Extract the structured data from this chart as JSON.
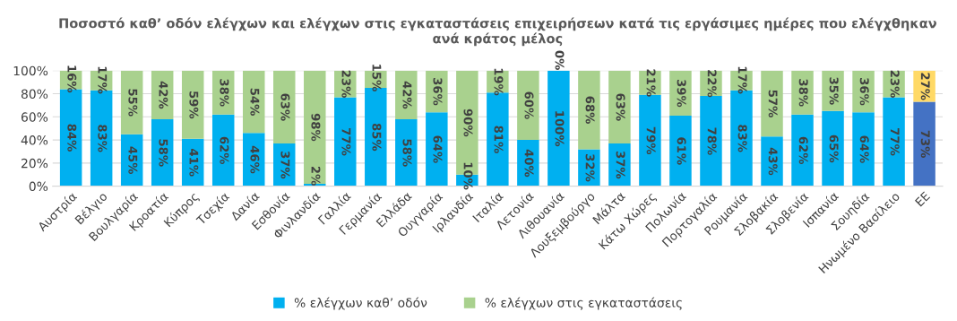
{
  "chart_data": {
    "type": "bar",
    "title": "Ποσοστό καθ’ οδόν ελέγχων και ελέγχων στις εγκαταστάσεις επιχειρήσεων κατά τις εργάσιμες ημέρες που ελέγχθηκαν\nανά κράτος μέλος",
    "categories": [
      "Αυστρία",
      "Βέλγιο",
      "Βουλγαρία",
      "Κροατία",
      "Κύπρος",
      "Τσεχία",
      "Δανία",
      "Εσθονία",
      "Φινλανδία",
      "Γαλλία",
      "Γερμανία",
      "Ελλάδα",
      "Ουγγαρία",
      "Ιρλανδία",
      "Ιταλία",
      "Λετονία",
      "Λιθουανία",
      "Λουξεμβούργο",
      "Μάλτα",
      "Κάτω Χώρες",
      "Πολωνία",
      "Πορτογαλία",
      "Ρουμανία",
      "Σλοβακία",
      "Σλοβενία",
      "Ισπανία",
      "Σουηδία",
      "Ηνωμένο Βασίλειο",
      "ΕΕ"
    ],
    "stacked": true,
    "series": [
      {
        "name": "% ελέγχων καθ’ οδόν",
        "color": "#00b0f0",
        "colors": [
          "#00b0f0",
          "#00b0f0",
          "#00b0f0",
          "#00b0f0",
          "#00b0f0",
          "#00b0f0",
          "#00b0f0",
          "#00b0f0",
          "#00b0f0",
          "#00b0f0",
          "#00b0f0",
          "#00b0f0",
          "#00b0f0",
          "#00b0f0",
          "#00b0f0",
          "#00b0f0",
          "#00b0f0",
          "#00b0f0",
          "#00b0f0",
          "#00b0f0",
          "#00b0f0",
          "#00b0f0",
          "#00b0f0",
          "#00b0f0",
          "#00b0f0",
          "#00b0f0",
          "#00b0f0",
          "#00b0f0",
          "#4472c4"
        ],
        "values": [
          84,
          83,
          45,
          58,
          41,
          62,
          46,
          37,
          2,
          77,
          85,
          58,
          64,
          10,
          81,
          40,
          100,
          32,
          37,
          79,
          61,
          78,
          83,
          43,
          62,
          65,
          64,
          77,
          73
        ],
        "value_labels": [
          "84%",
          "83%",
          "45%",
          "58%",
          "41%",
          "62%",
          "46%",
          "37%",
          "2%",
          "77%",
          "85%",
          "58%",
          "64%",
          "10%",
          "81%",
          "40%",
          "100%",
          "32%",
          "37%",
          "79%",
          "61%",
          "78%",
          "83%",
          "43%",
          "62%",
          "65%",
          "64%",
          "77%",
          "73%"
        ]
      },
      {
        "name": "% ελέγχων στις εγκαταστάσεις",
        "color": "#a9d18e",
        "colors": [
          "#a9d18e",
          "#a9d18e",
          "#a9d18e",
          "#a9d18e",
          "#a9d18e",
          "#a9d18e",
          "#a9d18e",
          "#a9d18e",
          "#a9d18e",
          "#a9d18e",
          "#a9d18e",
          "#a9d18e",
          "#a9d18e",
          "#a9d18e",
          "#a9d18e",
          "#a9d18e",
          "#a9d18e",
          "#a9d18e",
          "#a9d18e",
          "#a9d18e",
          "#a9d18e",
          "#a9d18e",
          "#a9d18e",
          "#a9d18e",
          "#a9d18e",
          "#a9d18e",
          "#a9d18e",
          "#a9d18e",
          "#ffd966"
        ],
        "values": [
          16,
          17,
          55,
          42,
          59,
          38,
          54,
          63,
          98,
          23,
          15,
          42,
          36,
          90,
          19,
          60,
          0,
          68,
          63,
          21,
          39,
          22,
          17,
          57,
          38,
          35,
          36,
          23,
          27
        ],
        "value_labels": [
          "16%",
          "17%",
          "55%",
          "42%",
          "59%",
          "38%",
          "54%",
          "63%",
          "98%",
          "23%",
          "15%",
          "42%",
          "36%",
          "90%",
          "19%",
          "60%",
          "0%",
          "68%",
          "63%",
          "21%",
          "39%",
          "22%",
          "17%",
          "57%",
          "38%",
          "35%",
          "36%",
          "23%",
          "27%"
        ]
      }
    ],
    "ylim": [
      0,
      100
    ],
    "yticks": [
      {
        "value": 0,
        "label": "0%"
      },
      {
        "value": 20,
        "label": "20%"
      },
      {
        "value": 40,
        "label": "40%"
      },
      {
        "value": 60,
        "label": "60%"
      },
      {
        "value": 80,
        "label": "80%"
      },
      {
        "value": 100,
        "label": "100%"
      }
    ],
    "grid": "y",
    "legend": "bottom"
  }
}
